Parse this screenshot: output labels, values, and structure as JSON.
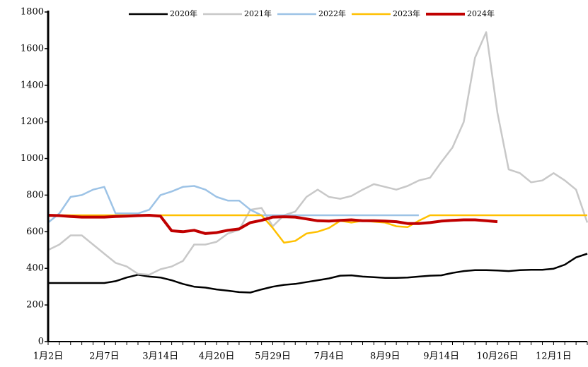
{
  "chart_data": {
    "type": "line",
    "categories": [
      "1月2日",
      null,
      null,
      null,
      null,
      "2月7日",
      null,
      null,
      null,
      null,
      "3月14日",
      null,
      null,
      null,
      null,
      "4月20日",
      null,
      null,
      null,
      null,
      "5月29日",
      null,
      null,
      null,
      null,
      "7月4日",
      null,
      null,
      null,
      null,
      "8月9日",
      null,
      null,
      null,
      null,
      "9月14日",
      null,
      null,
      null,
      null,
      "10月26日",
      null,
      null,
      null,
      null,
      "12月1日",
      null,
      null,
      null
    ],
    "series": [
      {
        "name": "2020年",
        "color": "#000000",
        "width": 2.5,
        "values": [
          320,
          320,
          320,
          320,
          320,
          320,
          330,
          350,
          365,
          355,
          350,
          335,
          315,
          300,
          295,
          285,
          278,
          270,
          268,
          285,
          300,
          310,
          315,
          325,
          335,
          345,
          360,
          362,
          355,
          352,
          348,
          348,
          350,
          355,
          360,
          362,
          375,
          385,
          390,
          390,
          388,
          385,
          390,
          392,
          392,
          398,
          420,
          460,
          480
        ]
      },
      {
        "name": "2021年",
        "color": "#c8c8c8",
        "width": 2.5,
        "values": [
          500,
          530,
          580,
          580,
          530,
          480,
          430,
          410,
          370,
          365,
          395,
          410,
          440,
          530,
          530,
          545,
          590,
          610,
          720,
          730,
          630,
          690,
          710,
          790,
          830,
          790,
          780,
          795,
          830,
          860,
          845,
          830,
          850,
          880,
          895,
          980,
          1060,
          1200,
          1550,
          1690,
          1250,
          940,
          920,
          870,
          880,
          920,
          880,
          830,
          650
        ]
      },
      {
        "name": "2022年",
        "color": "#9dc3e6",
        "width": 2.5,
        "values": [
          650,
          700,
          790,
          800,
          830,
          845,
          700,
          700,
          700,
          720,
          800,
          820,
          845,
          850,
          830,
          790,
          770,
          770,
          720,
          690,
          690,
          690,
          690,
          690,
          690,
          690,
          690,
          690,
          690,
          690,
          690,
          690,
          690,
          690,
          null,
          null,
          null,
          null,
          null,
          null,
          null,
          null,
          null,
          null,
          null,
          null,
          null,
          null,
          null
        ]
      },
      {
        "name": "2023年",
        "color": "#ffc000",
        "width": 2.5,
        "values": [
          690,
          690,
          690,
          690,
          690,
          690,
          690,
          690,
          690,
          690,
          690,
          690,
          690,
          690,
          690,
          690,
          690,
          690,
          690,
          690,
          620,
          540,
          550,
          590,
          600,
          620,
          660,
          650,
          660,
          655,
          650,
          630,
          625,
          660,
          690,
          690,
          690,
          690,
          690,
          690,
          690,
          690,
          690,
          690,
          690,
          690,
          690,
          690,
          690
        ]
      },
      {
        "name": "2024年",
        "color": "#c00000",
        "width": 4,
        "values": [
          690,
          688,
          683,
          680,
          680,
          680,
          683,
          685,
          688,
          690,
          685,
          605,
          600,
          608,
          590,
          595,
          608,
          615,
          650,
          662,
          680,
          682,
          680,
          670,
          660,
          658,
          662,
          665,
          660,
          660,
          658,
          655,
          645,
          645,
          650,
          658,
          662,
          665,
          665,
          660,
          655,
          null,
          null,
          null,
          null,
          null,
          null,
          null,
          null
        ]
      }
    ],
    "ylim": [
      0,
      1800
    ],
    "yticks": [
      0,
      200,
      400,
      600,
      800,
      1000,
      1200,
      1400,
      1600,
      1800
    ],
    "grid": false,
    "legend": "top"
  }
}
